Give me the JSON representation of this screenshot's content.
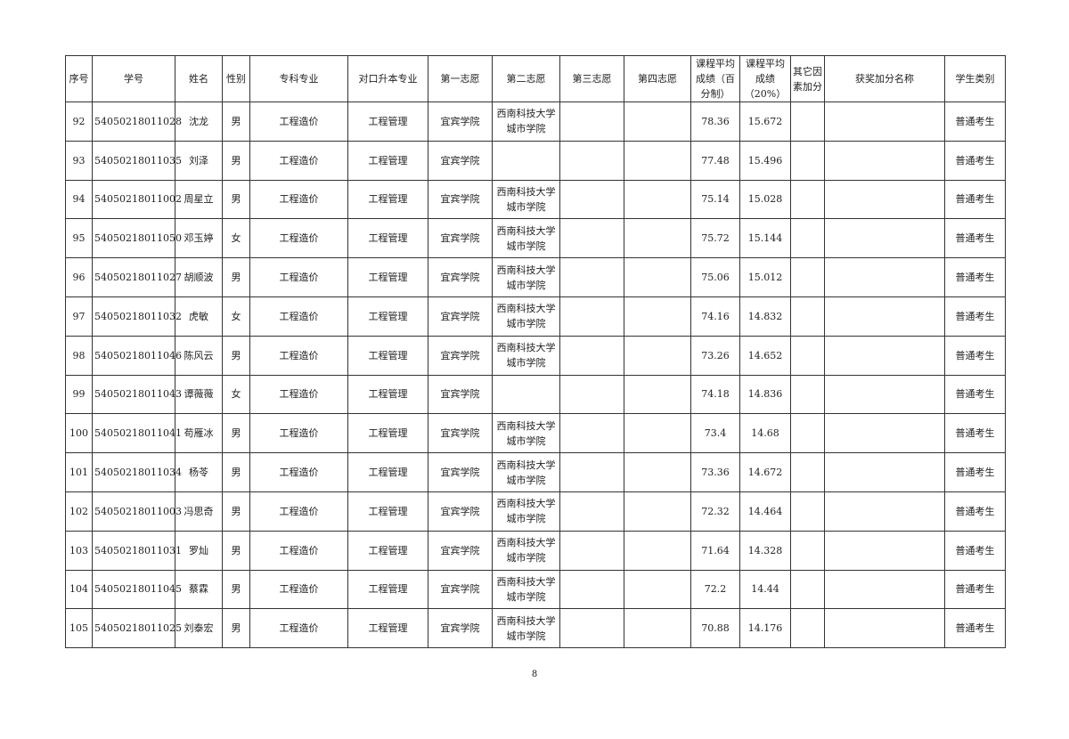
{
  "headers": [
    "序号",
    "学号",
    "姓名",
    "性别",
    "专科专业",
    "对口升本专业",
    "第一志愿",
    "第二志愿",
    "第三志愿",
    "第四志愿",
    "课程平均成绩（百分制）",
    "课程平均成绩（20%）",
    "其它因素加分",
    "获奖加分名称",
    "学生类别"
  ],
  "rows": [
    [
      "92",
      "54050218011028",
      "沈龙",
      "男",
      "工程造价",
      "工程管理",
      "宜宾学院",
      "西南科技大学城市学院",
      "",
      "",
      "78.36",
      "15.672",
      "",
      "",
      "普通考生"
    ],
    [
      "93",
      "54050218011035",
      "刘泽",
      "男",
      "工程造价",
      "工程管理",
      "宜宾学院",
      "",
      "",
      "",
      "77.48",
      "15.496",
      "",
      "",
      "普通考生"
    ],
    [
      "94",
      "54050218011002",
      "周星立",
      "男",
      "工程造价",
      "工程管理",
      "宜宾学院",
      "西南科技大学城市学院",
      "",
      "",
      "75.14",
      "15.028",
      "",
      "",
      "普通考生"
    ],
    [
      "95",
      "54050218011050",
      "邓玉婷",
      "女",
      "工程造价",
      "工程管理",
      "宜宾学院",
      "西南科技大学城市学院",
      "",
      "",
      "75.72",
      "15.144",
      "",
      "",
      "普通考生"
    ],
    [
      "96",
      "54050218011027",
      "胡顺波",
      "男",
      "工程造价",
      "工程管理",
      "宜宾学院",
      "西南科技大学城市学院",
      "",
      "",
      "75.06",
      "15.012",
      "",
      "",
      "普通考生"
    ],
    [
      "97",
      "54050218011032",
      "虎敏",
      "女",
      "工程造价",
      "工程管理",
      "宜宾学院",
      "西南科技大学城市学院",
      "",
      "",
      "74.16",
      "14.832",
      "",
      "",
      "普通考生"
    ],
    [
      "98",
      "54050218011046",
      "陈风云",
      "男",
      "工程造价",
      "工程管理",
      "宜宾学院",
      "西南科技大学城市学院",
      "",
      "",
      "73.26",
      "14.652",
      "",
      "",
      "普通考生"
    ],
    [
      "99",
      "54050218011043",
      "谭薇薇",
      "女",
      "工程造价",
      "工程管理",
      "宜宾学院",
      "",
      "",
      "",
      "74.18",
      "14.836",
      "",
      "",
      "普通考生"
    ],
    [
      "100",
      "54050218011041",
      "苟雁冰",
      "男",
      "工程造价",
      "工程管理",
      "宜宾学院",
      "西南科技大学城市学院",
      "",
      "",
      "73.4",
      "14.68",
      "",
      "",
      "普通考生"
    ],
    [
      "101",
      "54050218011034",
      "杨苓",
      "男",
      "工程造价",
      "工程管理",
      "宜宾学院",
      "西南科技大学城市学院",
      "",
      "",
      "73.36",
      "14.672",
      "",
      "",
      "普通考生"
    ],
    [
      "102",
      "54050218011003",
      "冯思奇",
      "男",
      "工程造价",
      "工程管理",
      "宜宾学院",
      "西南科技大学城市学院",
      "",
      "",
      "72.32",
      "14.464",
      "",
      "",
      "普通考生"
    ],
    [
      "103",
      "54050218011031",
      "罗灿",
      "男",
      "工程造价",
      "工程管理",
      "宜宾学院",
      "西南科技大学城市学院",
      "",
      "",
      "71.64",
      "14.328",
      "",
      "",
      "普通考生"
    ],
    [
      "104",
      "54050218011045",
      "蔡霖",
      "男",
      "工程造价",
      "工程管理",
      "宜宾学院",
      "西南科技大学城市学院",
      "",
      "",
      "72.2",
      "14.44",
      "",
      "",
      "普通考生"
    ],
    [
      "105",
      "54050218011025",
      "刘泰宏",
      "男",
      "工程造价",
      "工程管理",
      "宜宾学院",
      "西南科技大学城市学院",
      "",
      "",
      "70.88",
      "14.176",
      "",
      "",
      "普通考生"
    ]
  ],
  "page_number": "8"
}
